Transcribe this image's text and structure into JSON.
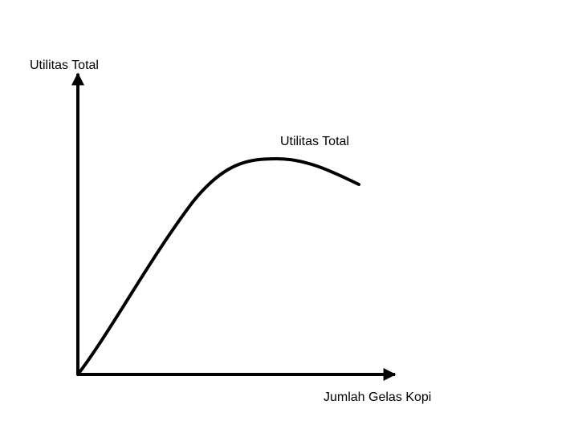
{
  "axes": {
    "y_label": "Utilitas Total",
    "x_label": "Jumlah Gelas Kopi"
  },
  "curve": {
    "label": "Utilitas Total"
  }
}
